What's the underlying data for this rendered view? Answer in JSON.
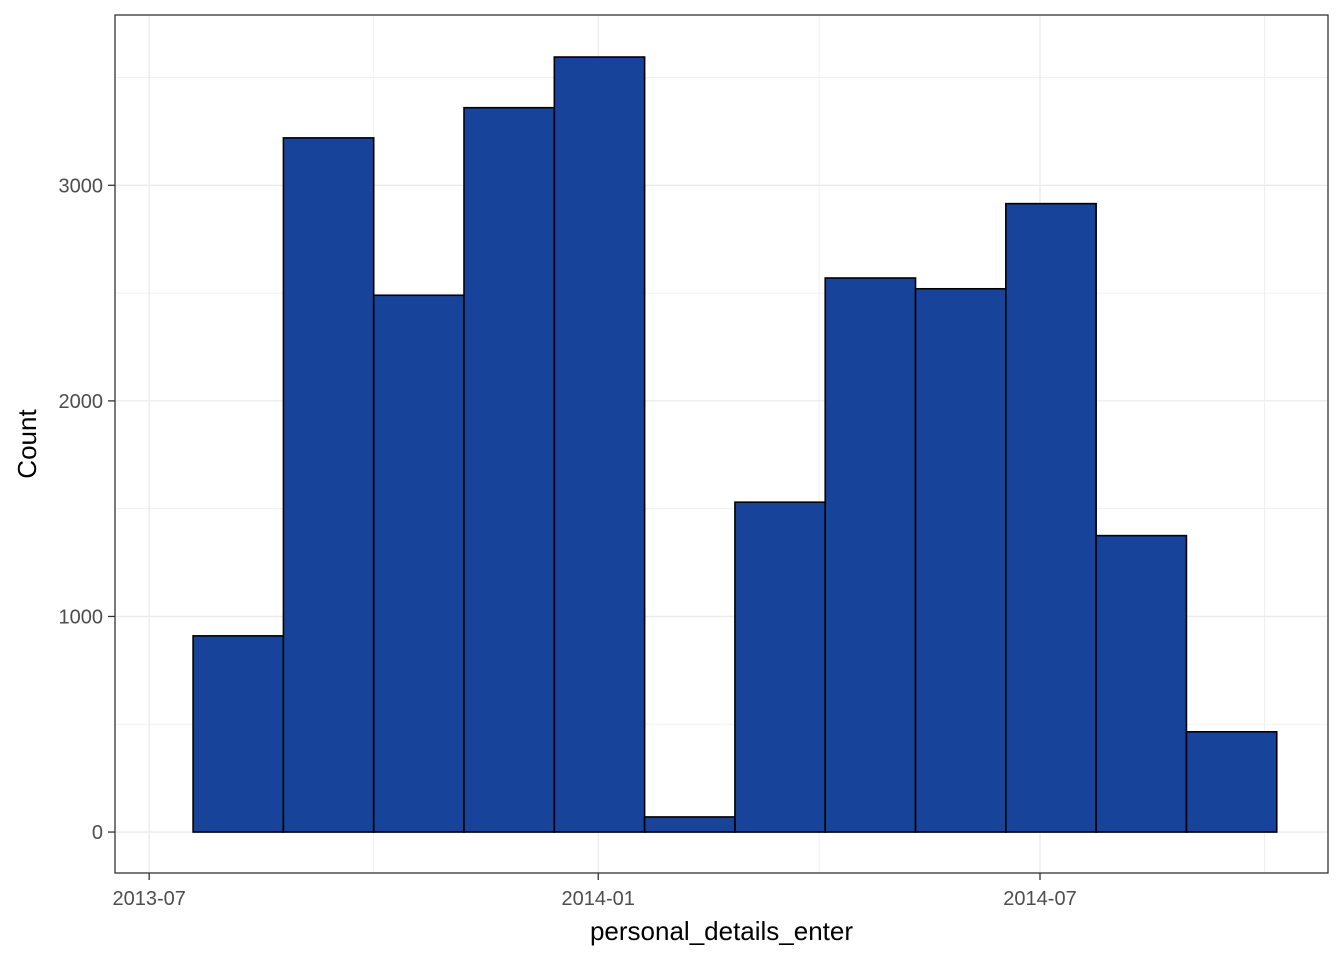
{
  "chart_data": {
    "type": "bar",
    "title": "",
    "xlabel": "personal_details_enter",
    "ylabel": "Count",
    "x_ticks": [
      {
        "label": "2013-07",
        "date": "2013-07-01"
      },
      {
        "label": "2014-01",
        "date": "2014-01-01"
      },
      {
        "label": "2014-07",
        "date": "2014-07-01"
      }
    ],
    "y_ticks": [
      0,
      1000,
      2000,
      3000
    ],
    "ylim": [
      -190,
      3790
    ],
    "xlim": [
      "2013-06-17",
      "2014-10-27"
    ],
    "grid": true,
    "bar_color": "#18439a",
    "bar_outline": "#000000",
    "bins": [
      {
        "start": "2013-07-19",
        "end": "2013-08-25",
        "count": 910
      },
      {
        "start": "2013-08-25",
        "end": "2013-10-01",
        "count": 3220
      },
      {
        "start": "2013-10-01",
        "end": "2013-11-07",
        "count": 2490
      },
      {
        "start": "2013-11-07",
        "end": "2013-12-14",
        "count": 3360
      },
      {
        "start": "2013-12-14",
        "end": "2014-01-20",
        "count": 3595
      },
      {
        "start": "2014-01-20",
        "end": "2014-02-26",
        "count": 70
      },
      {
        "start": "2014-02-26",
        "end": "2014-04-04",
        "count": 1530
      },
      {
        "start": "2014-04-04",
        "end": "2014-05-11",
        "count": 2570
      },
      {
        "start": "2014-05-11",
        "end": "2014-06-17",
        "count": 2520
      },
      {
        "start": "2014-06-17",
        "end": "2014-07-24",
        "count": 2915
      },
      {
        "start": "2014-07-24",
        "end": "2014-08-30",
        "count": 1375
      },
      {
        "start": "2014-08-30",
        "end": "2014-10-06",
        "count": 465
      }
    ]
  }
}
